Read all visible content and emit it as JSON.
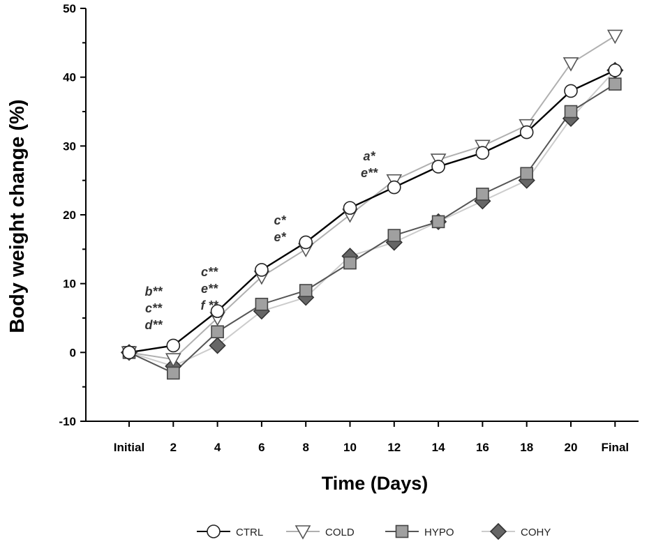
{
  "chart_data": {
    "type": "line",
    "title": "",
    "xlabel": "Time (Days)",
    "ylabel": "Body weight change (%)",
    "ylim": [
      -10,
      50
    ],
    "yticks": [
      "-10",
      "0",
      "10",
      "20",
      "30",
      "40",
      "50"
    ],
    "categories": [
      "Initial",
      "2",
      "4",
      "6",
      "8",
      "10",
      "12",
      "14",
      "16",
      "18",
      "20",
      "Final"
    ],
    "series": [
      {
        "name": "CTRL",
        "marker": "circle",
        "line_color": "#000000",
        "fill": "#ffffff",
        "values": [
          0,
          1,
          6,
          12,
          16,
          21,
          24,
          27,
          29,
          32,
          38,
          41
        ]
      },
      {
        "name": "COLD",
        "marker": "triangle-down",
        "line_color": "#b0b0b0",
        "fill": "#ffffff",
        "values": [
          0,
          -1,
          5,
          11,
          15,
          20,
          25,
          28,
          30,
          33,
          42,
          46
        ]
      },
      {
        "name": "HYPO",
        "marker": "square",
        "line_color": "#555555",
        "fill": "#a0a0a0",
        "values": [
          0,
          -3,
          3,
          7,
          9,
          13,
          17,
          19,
          23,
          26,
          35,
          39
        ]
      },
      {
        "name": "COHY",
        "marker": "diamond",
        "line_color": "#cccccc",
        "fill": "#666666",
        "values": [
          0,
          -2,
          1,
          6,
          8,
          14,
          16,
          19,
          22,
          25,
          34,
          41
        ]
      }
    ],
    "annotations": [
      {
        "category": "Initial",
        "lines": [
          "b**",
          "c**",
          "d**"
        ]
      },
      {
        "category": "4",
        "lines": [
          "c**",
          "e**",
          "f **"
        ]
      },
      {
        "category": "8",
        "lines": [
          "c*",
          "e*"
        ]
      },
      {
        "category": "10",
        "lines": [
          "a*",
          "e**"
        ]
      }
    ],
    "legend_position": "bottom"
  }
}
